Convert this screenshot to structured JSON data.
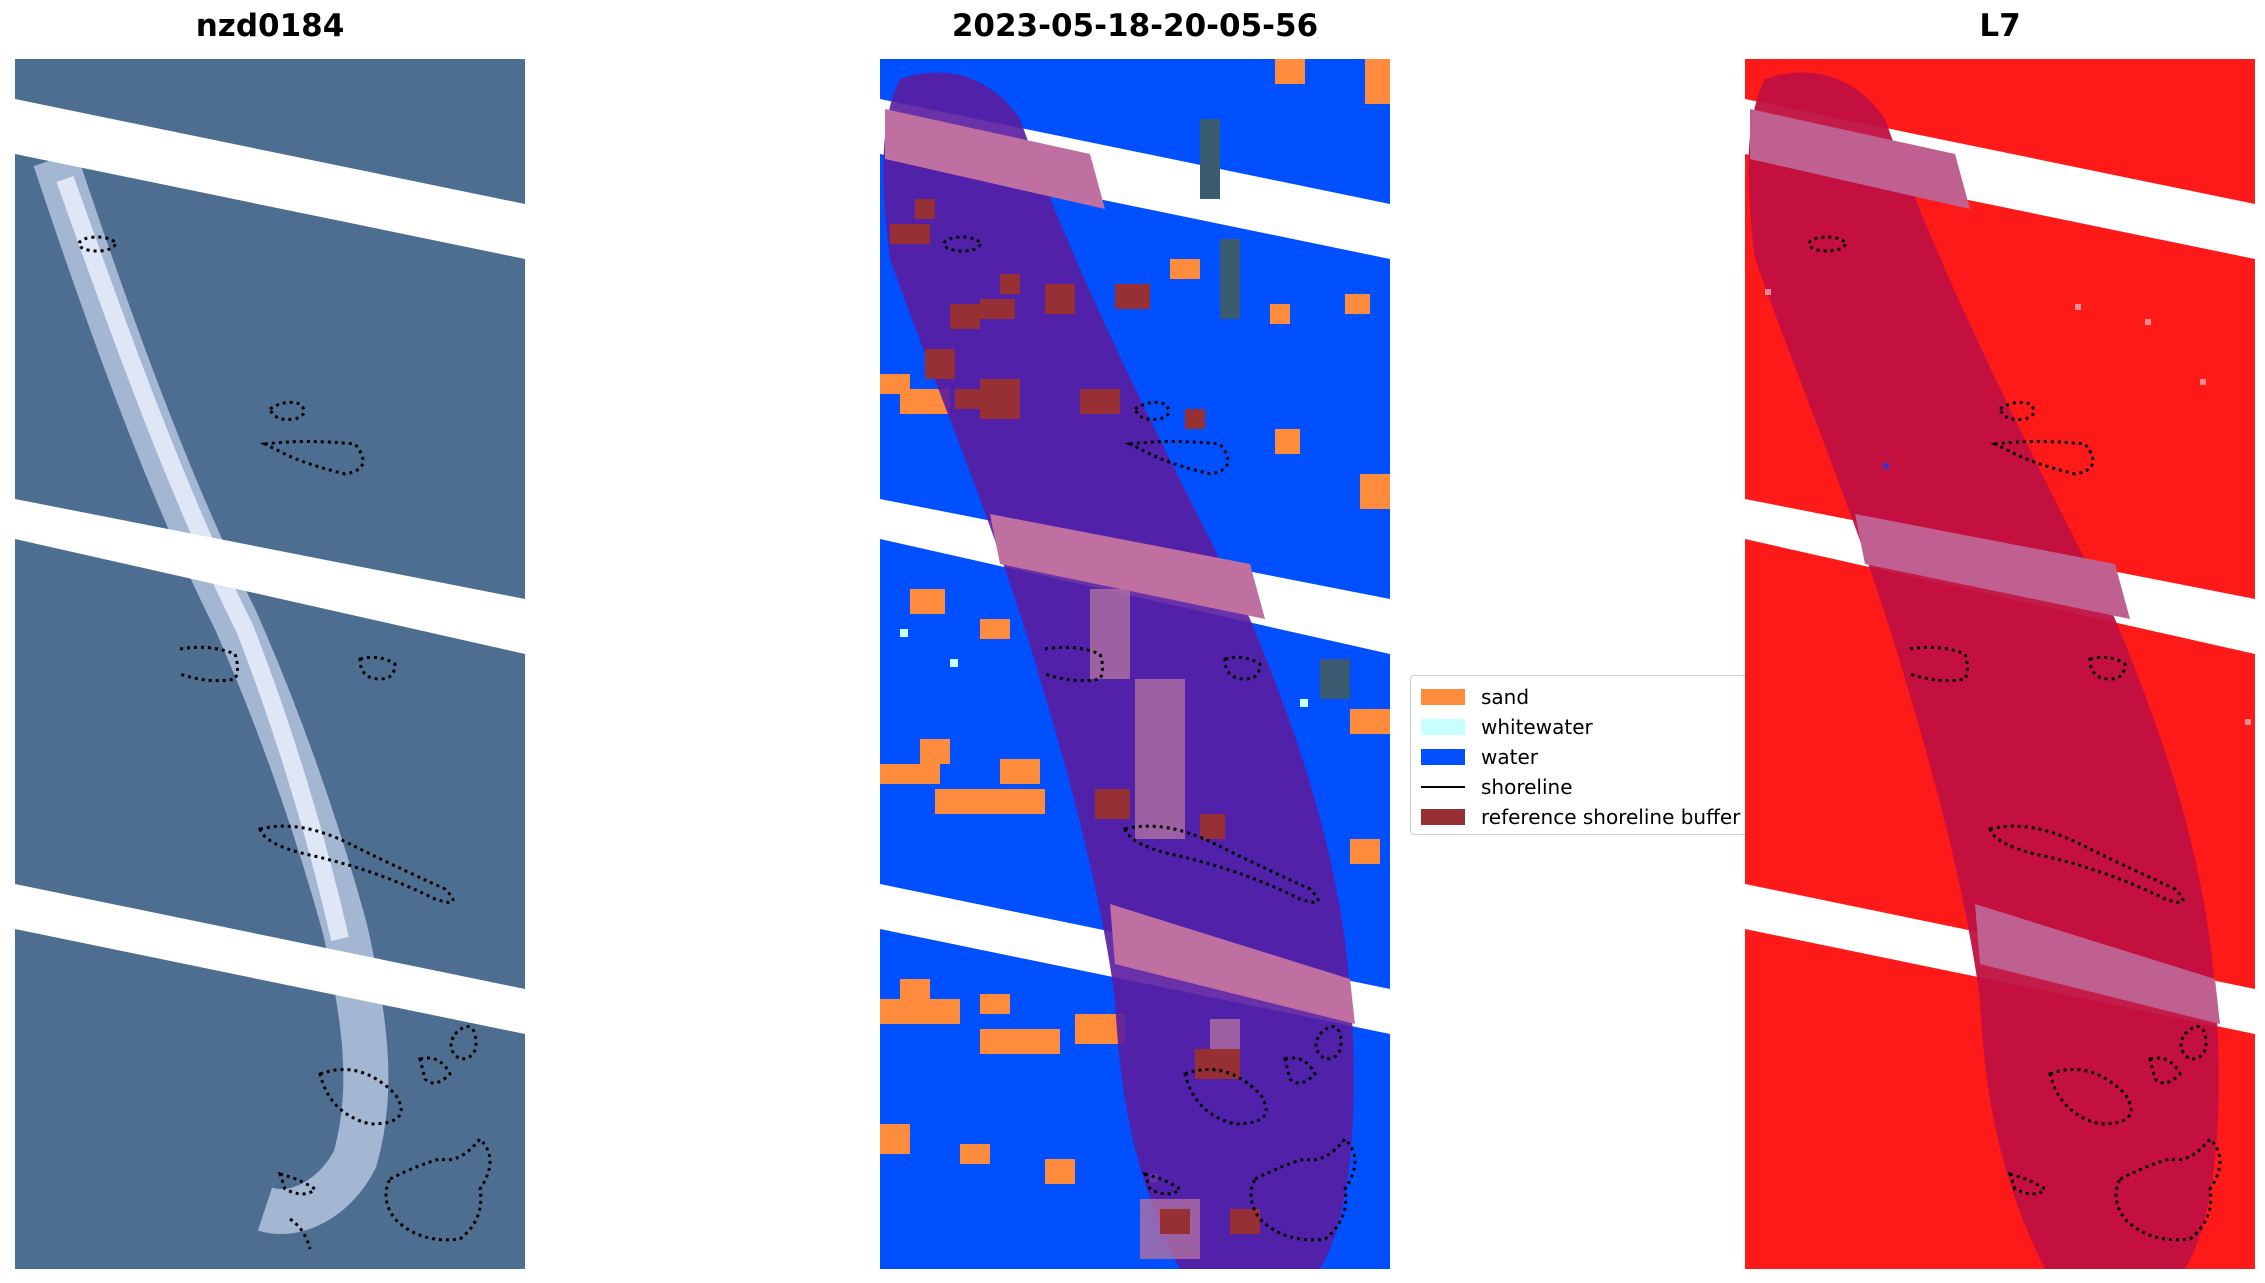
{
  "titles": {
    "left": "nzd0184",
    "center": "2023-05-18-20-05-56",
    "right": "L7"
  },
  "legend": {
    "items": [
      {
        "label": "sand",
        "color": "#ff8c3c"
      },
      {
        "label": "whitewater",
        "color": "#c8ffff"
      },
      {
        "label": "water",
        "color": "#0050ff"
      },
      {
        "label": "shoreline",
        "color": "#000000"
      },
      {
        "label": "reference shoreline buffer",
        "color": "#963034"
      }
    ]
  },
  "colors": {
    "rgb_background": "#4a6a90",
    "water": "#0050ff",
    "sand": "#ff8c3c",
    "whitewater": "#c8ffff",
    "buffer_overlay": "#6a1aa0",
    "buffer_stripe": "#c070a0",
    "index_red": "#ff1a1a",
    "index_buffer": "#c01040"
  }
}
